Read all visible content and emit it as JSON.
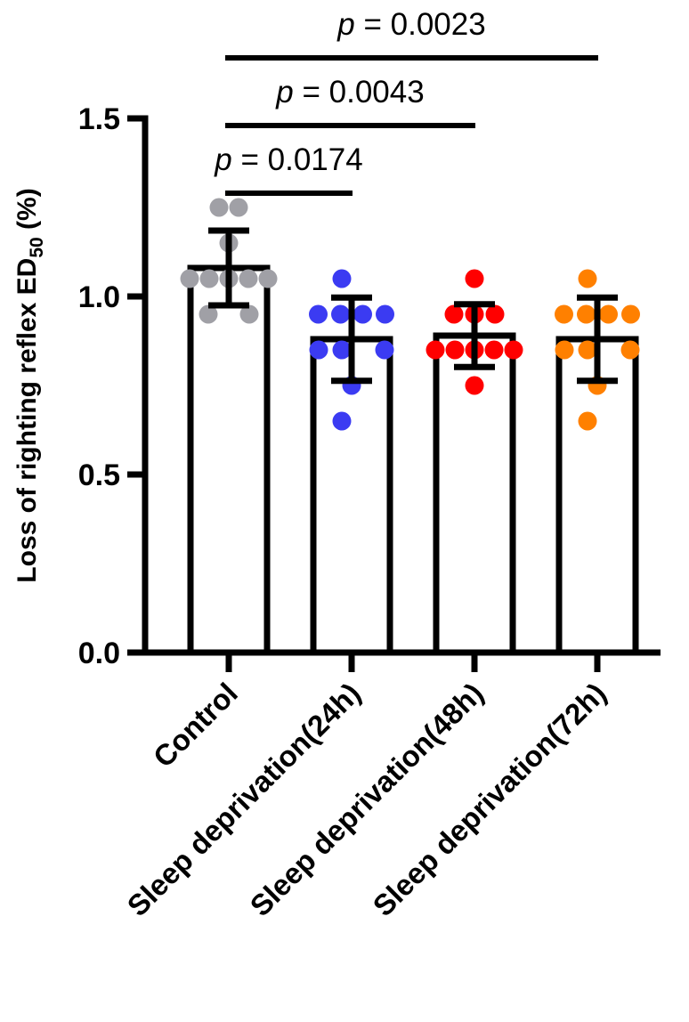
{
  "chart_data": {
    "type": "bar",
    "title": "",
    "xlabel": "",
    "ylabel": "Loss of righting reflex ED",
    "ylabel_subscript": "50",
    "ylabel_suffix": " (%)",
    "ylim": [
      0,
      1.5
    ],
    "yticks": [
      0.0,
      0.5,
      1.0,
      1.5
    ],
    "ytick_labels": [
      "0.0",
      "0.5",
      "1.0",
      "1.5"
    ],
    "grid": false,
    "categories": [
      "Control",
      "Sleep deprivation(24h)",
      "Sleep deprivation(48h)",
      "Sleep deprivation(72h)"
    ],
    "bar_color": "#ffffff",
    "bar_edge_color": "#000000",
    "series": [
      {
        "name": "Control",
        "mean": 1.08,
        "sd": 0.105,
        "dot_color": "#a0a0a6",
        "points": [
          1.25,
          1.25,
          1.15,
          1.05,
          1.05,
          1.05,
          1.05,
          1.05,
          0.95,
          0.95
        ]
      },
      {
        "name": "Sleep deprivation(24h)",
        "mean": 0.88,
        "sd": 0.117,
        "dot_color": "#3b3bf2",
        "points": [
          1.05,
          0.95,
          0.95,
          0.95,
          0.95,
          0.85,
          0.85,
          0.85,
          0.75,
          0.65
        ]
      },
      {
        "name": "Sleep deprivation(48h)",
        "mean": 0.89,
        "sd": 0.088,
        "dot_color": "#ff0000",
        "points": [
          1.05,
          0.95,
          0.95,
          0.95,
          0.85,
          0.85,
          0.85,
          0.85,
          0.85,
          0.75
        ]
      },
      {
        "name": "Sleep deprivation(72h)",
        "mean": 0.88,
        "sd": 0.117,
        "dot_color": "#ff8000",
        "points": [
          1.05,
          0.95,
          0.95,
          0.95,
          0.95,
          0.85,
          0.85,
          0.85,
          0.75,
          0.65
        ]
      }
    ],
    "annotations": [
      {
        "label": "p = 0.0174",
        "p_italic": "p",
        "p_rest": " = 0.0174",
        "from": 0,
        "to": 1,
        "level": 1.29
      },
      {
        "label": "p = 0.0043",
        "p_italic": "p",
        "p_rest": " = 0.0043",
        "from": 0,
        "to": 2,
        "level": 1.48
      },
      {
        "label": "p = 0.0023",
        "p_italic": "p",
        "p_rest": " = 0.0023",
        "from": 0,
        "to": 3,
        "level": 1.67
      }
    ]
  }
}
